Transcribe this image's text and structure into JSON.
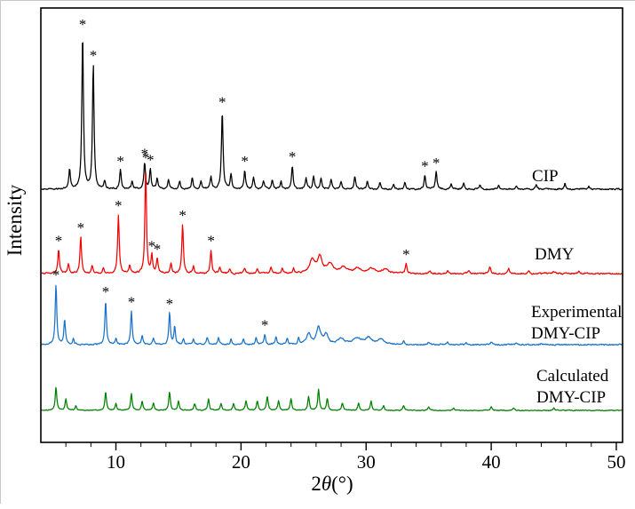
{
  "figure": {
    "background": "#ffffff"
  },
  "chart_data": {
    "type": "line",
    "title": "",
    "xlabel": "2θ(°)",
    "xlabel_parts": [
      "2",
      "θ",
      "(°)"
    ],
    "ylabel": "Intensity",
    "xlim": [
      4.0,
      50.5
    ],
    "x_ticks": [
      10,
      20,
      30,
      40,
      50
    ],
    "x_minor_tick_step": 2,
    "grid": false,
    "legend_position": "right-inline",
    "star_symbol": "*",
    "series": [
      {
        "name": "CIP",
        "color": "#000000",
        "label_lines": [
          "CIP"
        ],
        "peaks": [
          [
            6.3,
            0.13
          ],
          [
            7.34,
            1.0
          ],
          [
            8.19,
            0.8
          ],
          [
            9.1,
            0.05
          ],
          [
            10.36,
            0.12
          ],
          [
            11.3,
            0.05
          ],
          [
            12.3,
            0.17
          ],
          [
            12.75,
            0.13
          ],
          [
            13.3,
            0.07
          ],
          [
            14.2,
            0.06
          ],
          [
            15.1,
            0.05
          ],
          [
            16.1,
            0.07
          ],
          [
            16.8,
            0.05
          ],
          [
            17.6,
            0.08
          ],
          [
            18.5,
            0.5
          ],
          [
            19.2,
            0.09
          ],
          [
            20.3,
            0.12
          ],
          [
            21.0,
            0.07
          ],
          [
            21.8,
            0.05
          ],
          [
            22.5,
            0.06
          ],
          [
            23.2,
            0.05
          ],
          [
            24.1,
            0.15
          ],
          [
            25.2,
            0.07
          ],
          [
            25.8,
            0.08
          ],
          [
            26.4,
            0.07
          ],
          [
            27.2,
            0.06
          ],
          [
            28.0,
            0.05
          ],
          [
            29.1,
            0.08
          ],
          [
            30.1,
            0.05
          ],
          [
            31.1,
            0.04
          ],
          [
            32.2,
            0.03
          ],
          [
            33.1,
            0.04
          ],
          [
            34.7,
            0.09
          ],
          [
            35.6,
            0.11
          ],
          [
            36.8,
            0.03
          ],
          [
            37.8,
            0.04
          ],
          [
            39.1,
            0.03
          ],
          [
            40.6,
            0.03
          ],
          [
            42.0,
            0.02
          ],
          [
            43.6,
            0.03
          ],
          [
            45.9,
            0.04
          ],
          [
            47.8,
            0.02
          ]
        ],
        "starred": [
          7.34,
          8.19,
          10.36,
          12.3,
          12.75,
          18.5,
          20.3,
          24.1,
          34.7,
          35.6
        ]
      },
      {
        "name": "DMY",
        "color": "#f40000",
        "label_lines": [
          "DMY"
        ],
        "peaks": [
          [
            5.42,
            0.22
          ],
          [
            6.2,
            0.09
          ],
          [
            7.19,
            0.34
          ],
          [
            8.1,
            0.07
          ],
          [
            9.0,
            0.05
          ],
          [
            10.2,
            0.55
          ],
          [
            11.1,
            0.07
          ],
          [
            12.38,
            1.0
          ],
          [
            12.87,
            0.17
          ],
          [
            13.3,
            0.14
          ],
          [
            14.4,
            0.09
          ],
          [
            15.33,
            0.46
          ],
          [
            16.2,
            0.07
          ],
          [
            17.6,
            0.22
          ],
          [
            18.3,
            0.06
          ],
          [
            19.1,
            0.05
          ],
          [
            20.3,
            0.05
          ],
          [
            21.3,
            0.05
          ],
          [
            22.4,
            0.06
          ],
          [
            23.3,
            0.05
          ],
          [
            24.2,
            0.05
          ],
          [
            25.7,
            0.13,
            0.25
          ],
          [
            26.3,
            0.15,
            0.2
          ],
          [
            27.1,
            0.09,
            0.3
          ],
          [
            28.2,
            0.06,
            0.3
          ],
          [
            29.3,
            0.05,
            0.3
          ],
          [
            30.4,
            0.05,
            0.3
          ],
          [
            31.5,
            0.04,
            0.3
          ],
          [
            33.2,
            0.09
          ],
          [
            35.1,
            0.03
          ],
          [
            36.5,
            0.03
          ],
          [
            38.2,
            0.03
          ],
          [
            39.9,
            0.06
          ],
          [
            41.4,
            0.05
          ],
          [
            43.0,
            0.02
          ],
          [
            45.0,
            0.02
          ],
          [
            47.0,
            0.02
          ]
        ],
        "starred": [
          5.42,
          7.19,
          10.2,
          12.38,
          12.87,
          13.3,
          15.33,
          17.6,
          33.2
        ]
      },
      {
        "name": "Experimental DMY-CIP",
        "color": "#1a73c8",
        "label_lines": [
          "Experimental",
          "DMY-CIP"
        ],
        "peaks": [
          [
            5.21,
            1.0
          ],
          [
            5.9,
            0.42
          ],
          [
            6.6,
            0.1
          ],
          [
            9.18,
            0.72
          ],
          [
            10.0,
            0.1
          ],
          [
            11.24,
            0.55
          ],
          [
            12.1,
            0.15
          ],
          [
            13.0,
            0.1
          ],
          [
            14.29,
            0.52
          ],
          [
            14.7,
            0.3
          ],
          [
            15.4,
            0.1
          ],
          [
            16.2,
            0.1
          ],
          [
            17.3,
            0.12
          ],
          [
            18.2,
            0.12
          ],
          [
            19.2,
            0.1
          ],
          [
            20.2,
            0.1
          ],
          [
            21.2,
            0.12
          ],
          [
            21.9,
            0.17
          ],
          [
            22.8,
            0.13
          ],
          [
            23.7,
            0.11
          ],
          [
            24.6,
            0.1
          ],
          [
            25.4,
            0.18,
            0.2
          ],
          [
            26.2,
            0.27,
            0.2
          ],
          [
            26.8,
            0.16,
            0.2
          ],
          [
            28.0,
            0.09,
            0.3
          ],
          [
            29.3,
            0.1,
            0.4
          ],
          [
            30.2,
            0.11,
            0.3
          ],
          [
            31.2,
            0.08,
            0.3
          ],
          [
            33.0,
            0.05
          ],
          [
            35.0,
            0.04
          ],
          [
            36.5,
            0.03
          ],
          [
            38.0,
            0.03
          ],
          [
            40.0,
            0.04
          ],
          [
            42.0,
            0.03
          ],
          [
            44.0,
            0.02
          ]
        ],
        "starred": [
          5.21,
          9.18,
          11.24,
          14.29,
          21.9
        ]
      },
      {
        "name": "Calculated DMY-CIP",
        "color": "#008000",
        "label_lines": [
          "Calculated",
          "DMY-CIP"
        ],
        "peaks": [
          [
            5.21,
            1.0
          ],
          [
            6.0,
            0.5
          ],
          [
            6.8,
            0.2
          ],
          [
            9.18,
            0.8
          ],
          [
            10.0,
            0.3
          ],
          [
            11.24,
            0.7
          ],
          [
            12.1,
            0.4
          ],
          [
            13.0,
            0.3
          ],
          [
            14.29,
            0.8
          ],
          [
            15.0,
            0.4
          ],
          [
            16.3,
            0.3
          ],
          [
            17.4,
            0.5
          ],
          [
            18.4,
            0.3
          ],
          [
            19.4,
            0.3
          ],
          [
            20.4,
            0.4
          ],
          [
            21.3,
            0.4
          ],
          [
            22.1,
            0.6
          ],
          [
            23.0,
            0.4
          ],
          [
            24.0,
            0.5
          ],
          [
            25.4,
            0.6
          ],
          [
            26.2,
            0.9
          ],
          [
            26.9,
            0.5
          ],
          [
            28.1,
            0.3
          ],
          [
            29.4,
            0.3
          ],
          [
            30.4,
            0.4
          ],
          [
            31.4,
            0.2
          ],
          [
            33.0,
            0.2
          ],
          [
            35.0,
            0.15
          ],
          [
            37.0,
            0.1
          ],
          [
            40.0,
            0.15
          ],
          [
            41.8,
            0.1
          ],
          [
            45.0,
            0.1
          ]
        ],
        "starred": []
      }
    ]
  }
}
